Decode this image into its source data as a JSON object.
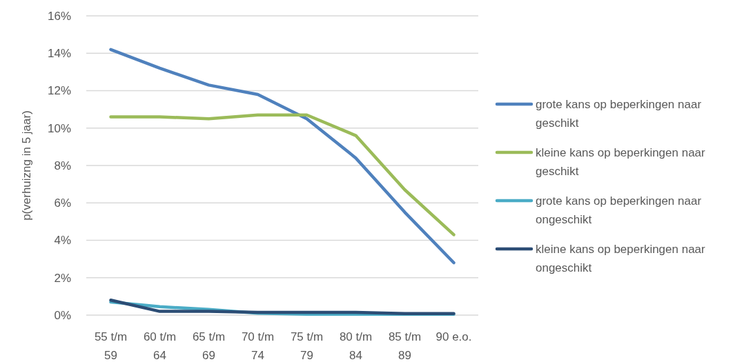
{
  "chart_data": {
    "type": "line",
    "ylabel": "p(verhuizng in 5 jaar)",
    "categories": [
      "55 t/m 59",
      "60 t/m 64",
      "65 t/m 69",
      "70 t/m 74",
      "75 t/m 79",
      "80 t/m 84",
      "85 t/m 89",
      "90 e.o."
    ],
    "series": [
      {
        "name": "grote kans op beperkingen naar geschikt",
        "color": "#4f81bd",
        "values": [
          14.2,
          13.2,
          12.3,
          11.8,
          10.5,
          8.4,
          5.5,
          2.8
        ]
      },
      {
        "name": "kleine kans op beperkingen naar geschikt",
        "color": "#9bbb59",
        "values": [
          10.6,
          10.6,
          10.5,
          10.7,
          10.7,
          9.6,
          6.7,
          4.3
        ]
      },
      {
        "name": "grote kans op beperkingen naar ongeschikt",
        "color": "#4bacc6",
        "values": [
          0.7,
          0.45,
          0.3,
          0.1,
          0.05,
          0.05,
          0.05,
          0.05
        ]
      },
      {
        "name": "kleine kans op beperkingen naar ongeschikt",
        "color": "#2c4d75",
        "values": [
          0.8,
          0.2,
          0.2,
          0.15,
          0.15,
          0.15,
          0.08,
          0.08
        ]
      }
    ],
    "ylim": [
      0,
      16
    ],
    "yticks": [
      {
        "value": 0,
        "label": "0%"
      },
      {
        "value": 2,
        "label": "2%"
      },
      {
        "value": 4,
        "label": "4%"
      },
      {
        "value": 6,
        "label": "6%"
      },
      {
        "value": 8,
        "label": "8%"
      },
      {
        "value": 10,
        "label": "10%"
      },
      {
        "value": 12,
        "label": "12%"
      },
      {
        "value": 14,
        "label": "14%"
      },
      {
        "value": 16,
        "label": "16%"
      }
    ],
    "grid": "y",
    "legend": "right"
  }
}
